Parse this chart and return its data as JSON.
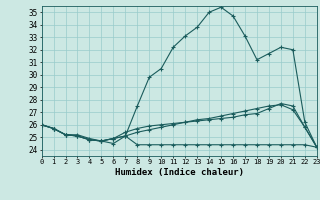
{
  "title": "",
  "xlabel": "Humidex (Indice chaleur)",
  "xlim": [
    0,
    23
  ],
  "ylim": [
    23.5,
    35.5
  ],
  "yticks": [
    24,
    25,
    26,
    27,
    28,
    29,
    30,
    31,
    32,
    33,
    34,
    35
  ],
  "xticks": [
    0,
    1,
    2,
    3,
    4,
    5,
    6,
    7,
    8,
    9,
    10,
    11,
    12,
    13,
    14,
    15,
    16,
    17,
    18,
    19,
    20,
    21,
    22,
    23
  ],
  "bg_color": "#cce8e3",
  "line_color": "#1a5c5c",
  "grid_color": "#99cccc",
  "lines": [
    [
      26.0,
      25.7,
      25.2,
      25.2,
      24.9,
      24.7,
      24.5,
      25.1,
      27.5,
      29.8,
      30.5,
      32.2,
      33.1,
      33.8,
      35.0,
      35.4,
      34.7,
      33.1,
      31.2,
      31.7,
      32.2,
      32.0,
      26.2,
      24.2
    ],
    [
      26.0,
      25.7,
      25.2,
      25.1,
      24.8,
      24.7,
      24.9,
      25.1,
      25.4,
      25.6,
      25.8,
      26.0,
      26.2,
      26.4,
      26.5,
      26.7,
      26.9,
      27.1,
      27.3,
      27.5,
      27.6,
      27.2,
      25.8,
      24.2
    ],
    [
      26.0,
      25.7,
      25.2,
      25.1,
      24.8,
      24.7,
      24.9,
      25.4,
      25.7,
      25.9,
      26.0,
      26.1,
      26.2,
      26.3,
      26.4,
      26.5,
      26.6,
      26.8,
      26.9,
      27.3,
      27.7,
      27.5,
      25.8,
      24.2
    ],
    [
      26.0,
      25.7,
      25.2,
      25.1,
      24.8,
      24.7,
      24.9,
      25.1,
      24.4,
      24.4,
      24.4,
      24.4,
      24.4,
      24.4,
      24.4,
      24.4,
      24.4,
      24.4,
      24.4,
      24.4,
      24.4,
      24.4,
      24.4,
      24.2
    ]
  ]
}
